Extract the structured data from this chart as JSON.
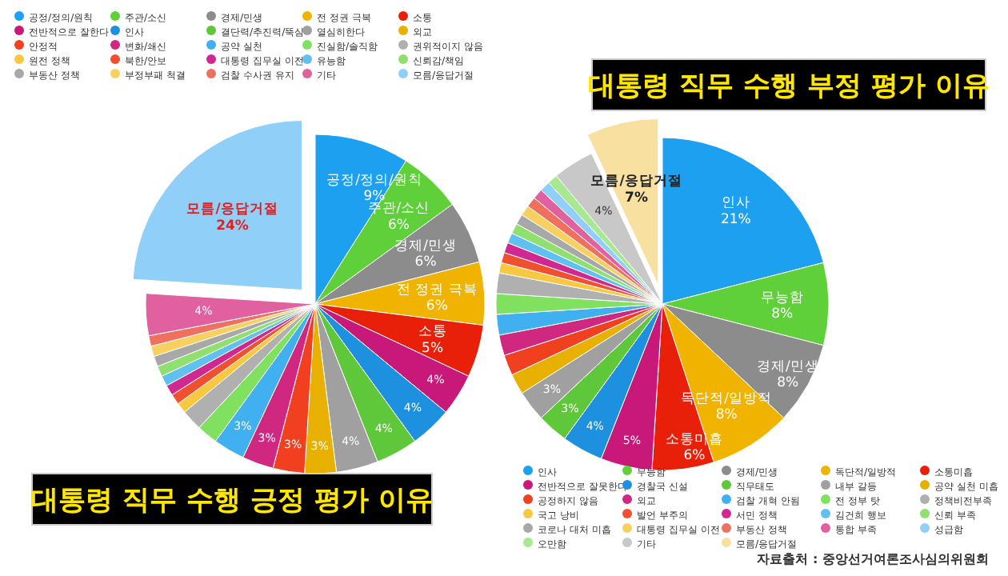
{
  "chart_data": [
    {
      "type": "pie",
      "title": "대통령 직무 수행 긍정 평가 이유",
      "legend": "top",
      "categories": [
        "공정/정의/원칙",
        "주관/소신",
        "경제/민생",
        "전 정권 극복",
        "소통",
        "전반적으로 잘한다",
        "인사",
        "결단력/추진력/뚝심",
        "열심히한다",
        "외교",
        "안정적",
        "변화/쇄신",
        "공약 실천",
        "진실함/솔직함",
        "권위적이지 않음",
        "원전 정책",
        "북한/안보",
        "대통령 집무실 이전",
        "유능함",
        "신뢰감/책임",
        "부동산 정책",
        "부정부패 척결",
        "검찰 수사권 유지",
        "기타",
        "모름/응답거절"
      ],
      "values": [
        9,
        6,
        6,
        6,
        5,
        4,
        4,
        4,
        4,
        3,
        3,
        3,
        3,
        2,
        2,
        1,
        1,
        1,
        1,
        1,
        1,
        1,
        1,
        4,
        24
      ],
      "value_labels": [
        "9%",
        "6%",
        "6%",
        "6%",
        "5%",
        "4%",
        "4%",
        "4%",
        "4%",
        "3%",
        "3%",
        "3%",
        "3%",
        null,
        null,
        null,
        null,
        null,
        null,
        null,
        null,
        null,
        null,
        "4%",
        "24%"
      ],
      "colors": [
        "#1ea0f0",
        "#5fd03a",
        "#8c8c8c",
        "#f0b400",
        "#e8200a",
        "#c8187a",
        "#1e90e0",
        "#5fc83a",
        "#a0a0a0",
        "#e8b000",
        "#f04020",
        "#d02880",
        "#40b0f0",
        "#80e060",
        "#b0b0b0",
        "#f8c840",
        "#f05030",
        "#d02890",
        "#60c0f0",
        "#90e070",
        "#a8a8a8",
        "#f8d060",
        "#f07060",
        "#e060a0",
        "#90d0f8"
      ]
    },
    {
      "type": "pie",
      "title": "대통령 직무 수행 부정 평가 이유",
      "legend": "bottom",
      "categories": [
        "인사",
        "무능함",
        "경제/민생",
        "독단적/일방적",
        "소통미흡",
        "전반적으로 잘못한다",
        "경찰국 신설",
        "직무태도",
        "내부 갈등",
        "공약 실천 미흡",
        "공정하지 않음",
        "외교",
        "검찰 개혁 안됨",
        "전 정부 탓",
        "정책비전부족",
        "국고 낭비",
        "발언 부주의",
        "서민 정책",
        "김건희 행보",
        "신뢰 부족",
        "코로나 대처 미흡",
        "대통령 집무실 이전",
        "부동산 정책",
        "통합 부족",
        "성급함",
        "오만함",
        "기타",
        "모름/응답거절"
      ],
      "values": [
        21,
        8,
        8,
        8,
        6,
        5,
        4,
        3,
        3,
        2,
        2,
        2,
        2,
        2,
        2,
        1,
        1,
        1,
        1,
        1,
        1,
        1,
        1,
        1,
        1,
        1,
        4,
        7
      ],
      "value_labels": [
        "21%",
        "8%",
        "8%",
        "8%",
        "6%",
        "5%",
        "4%",
        "3%",
        "3%",
        null,
        null,
        null,
        null,
        null,
        null,
        null,
        null,
        null,
        null,
        null,
        null,
        null,
        null,
        null,
        null,
        null,
        "4%",
        "7%"
      ],
      "colors": [
        "#1ea0f0",
        "#5fd03a",
        "#8c8c8c",
        "#f0b400",
        "#e8200a",
        "#c8187a",
        "#1e90e0",
        "#5fc83a",
        "#a0a0a0",
        "#e8b000",
        "#f04020",
        "#d02880",
        "#40b0f0",
        "#80e060",
        "#b0b0b0",
        "#f8c840",
        "#f05030",
        "#d02890",
        "#60c0f0",
        "#90e070",
        "#a8a8a8",
        "#f8d060",
        "#f07060",
        "#e060a0",
        "#90d0f8",
        "#a8e890",
        "#c8c8c8",
        "#f8e0a0"
      ],
      "annotations": [
        "자료출처 : 중앙선거여론조사심의위원회"
      ]
    }
  ]
}
